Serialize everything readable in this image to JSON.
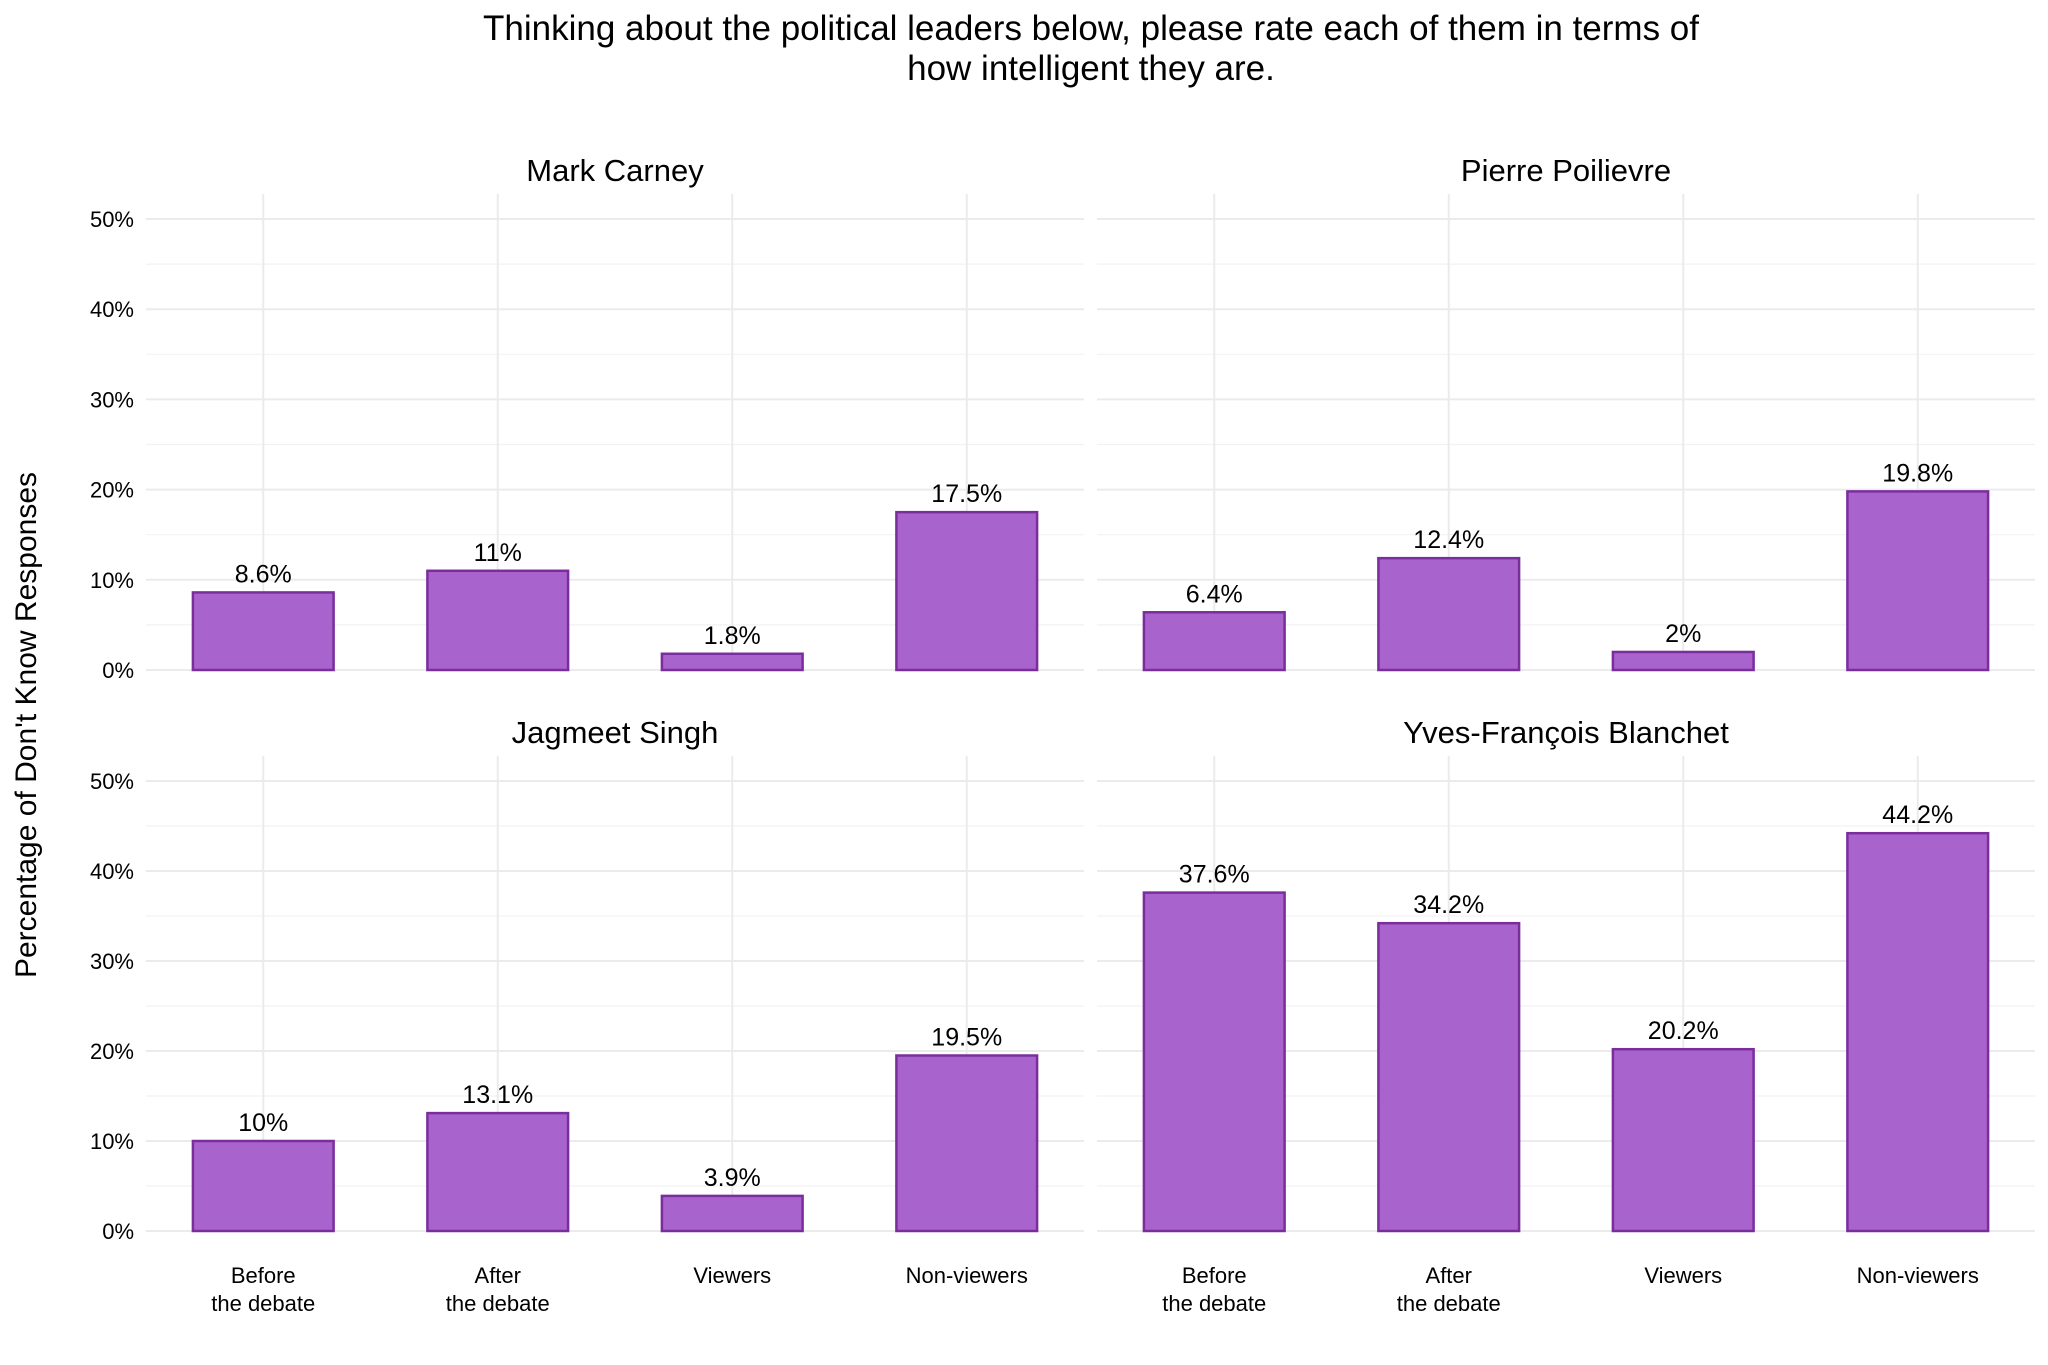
{
  "chart_data": {
    "type": "bar",
    "title": "Thinking about the political leaders below, please rate each of them in terms of\nhow intelligent they are.",
    "ylabel": "Percentage of Don't Know Responses",
    "xlabel": "",
    "ylim": [
      0,
      50
    ],
    "yticks": [
      "0%",
      "10%",
      "20%",
      "30%",
      "40%",
      "50%"
    ],
    "ytick_values": [
      0,
      10,
      20,
      30,
      40,
      50
    ],
    "grid": true,
    "categories": [
      "Before\nthe debate",
      "After\nthe debate",
      "Viewers",
      "Non-viewers"
    ],
    "bar_color": "#A963CC",
    "bar_edge_color": "#7A2E9E",
    "panels": [
      {
        "name": "Mark Carney",
        "values": [
          8.6,
          11,
          1.8,
          17.5
        ],
        "labels": [
          "8.6%",
          "11%",
          "1.8%",
          "17.5%"
        ]
      },
      {
        "name": "Pierre Poilievre",
        "values": [
          6.4,
          12.4,
          2,
          19.8
        ],
        "labels": [
          "6.4%",
          "12.4%",
          "2%",
          "19.8%"
        ]
      },
      {
        "name": "Jagmeet Singh",
        "values": [
          10,
          13.1,
          3.9,
          19.5
        ],
        "labels": [
          "10%",
          "13.1%",
          "3.9%",
          "19.5%"
        ]
      },
      {
        "name": "Yves-François Blanchet",
        "values": [
          37.6,
          34.2,
          20.2,
          44.2
        ],
        "labels": [
          "37.6%",
          "34.2%",
          "20.2%",
          "44.2%"
        ]
      }
    ]
  }
}
